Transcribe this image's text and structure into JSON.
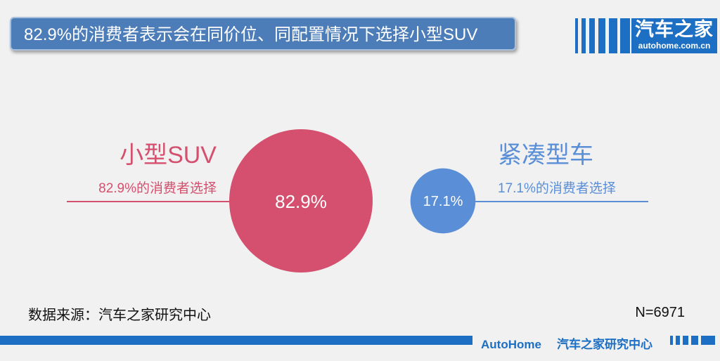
{
  "title": "82.9%的消费者表示会在同价位、同配置情况下选择小型SUV",
  "logo": {
    "cn": "汽车之家",
    "en": "autohome.com.cn"
  },
  "chart_data": {
    "type": "bubble",
    "title": "82.9%的消费者表示会在同价位、同配置情况下选择小型SUV",
    "series": [
      {
        "name": "小型SUV",
        "value": 82.9,
        "value_label": "82.9%",
        "description": "82.9%的消费者选择",
        "color": "#d4506e",
        "label_side": "left"
      },
      {
        "name": "紧凑型车",
        "value": 17.1,
        "value_label": "17.1%",
        "description": "17.1%的消费者选择",
        "color": "#5a8fd8",
        "label_side": "right"
      }
    ]
  },
  "footer": {
    "source": "数据来源：汽车之家研究中心",
    "sample": "N=6971",
    "brand_en": "AutoHome",
    "brand_cn": "汽车之家研究中心"
  },
  "colors": {
    "accent_blue": "#1d6fc4",
    "title_bg": "#4c7db8"
  }
}
